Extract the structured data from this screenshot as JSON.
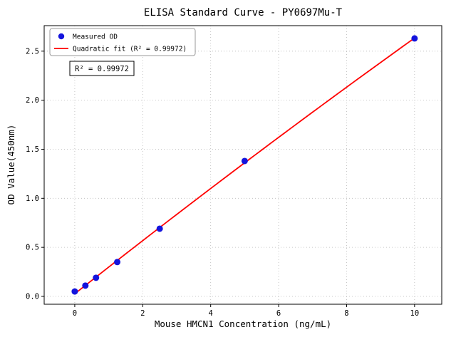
{
  "chart_data": {
    "type": "scatter",
    "title": "ELISA Standard Curve - PY0697Mu-T",
    "xlabel": "Mouse HMCN1 Concentration (ng/mL)",
    "ylabel": "OD Value(450nm)",
    "xlim": [
      -0.9,
      10.8
    ],
    "ylim": [
      -0.08,
      2.76
    ],
    "x_ticks": [
      0,
      2,
      4,
      6,
      8,
      10
    ],
    "y_ticks": [
      0,
      0.5,
      1,
      1.5,
      2,
      2.5
    ],
    "grid": true,
    "legend_position": "upper-left",
    "series": [
      {
        "name": "Measured OD",
        "type": "scatter",
        "color": "#1414dd",
        "x": [
          0,
          0.3125,
          0.625,
          1.25,
          2.5,
          5,
          10
        ],
        "y": [
          0.05,
          0.11,
          0.19,
          0.35,
          0.69,
          1.38,
          2.63
        ]
      },
      {
        "name": "Quadratic fit (R² = 0.99972)",
        "type": "line",
        "color": "#ff0000",
        "fit_coeffs": [
          -0.00126,
          0.2733,
          0.0268
        ],
        "x_range": [
          0,
          10
        ]
      }
    ],
    "annotation": "R² = 0.99972",
    "colors": {
      "grid": "#b8b8b8",
      "axis": "#000000",
      "legend_border": "#999999",
      "annotation_border": "#000000"
    }
  }
}
